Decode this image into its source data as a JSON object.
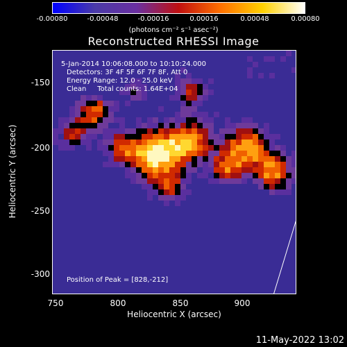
{
  "colorbar": {
    "ticks": [
      "-0.00080",
      "-0.00048",
      "-0.00016",
      "0.00016",
      "0.00048",
      "0.00080"
    ],
    "units": "(photons cm⁻² s⁻¹ asec⁻²)"
  },
  "title": "Reconstructed RHESSI Image",
  "info": {
    "time_range": "5-Jan-2014 10:06:08.000 to 10:10:24.000",
    "detectors": "Detectors: 3F 4F 5F 6F 7F 8F, Att 0",
    "energy": "Energy Range: 12.0 - 25.0 keV",
    "clean": "Clean     Total counts: 1.64E+04",
    "peak": "Position of Peak = [828,-212]"
  },
  "axes": {
    "xlabel": "Heliocentric X (arcsec)",
    "ylabel": "Heliocentric Y (arcsec)",
    "xticks": [
      "750",
      "800",
      "850",
      "900"
    ],
    "yticks": [
      "-150",
      "-200",
      "-250",
      "-300"
    ]
  },
  "datestamp": "11-May-2022 13:02",
  "colors": {
    "background": "#000000",
    "text": "#ffffff",
    "colormap": [
      "#0000ff",
      "#4a3aa8",
      "#6a2fa0",
      "#c01010",
      "#ff7000",
      "#ffd000",
      "#ffffff"
    ]
  }
}
